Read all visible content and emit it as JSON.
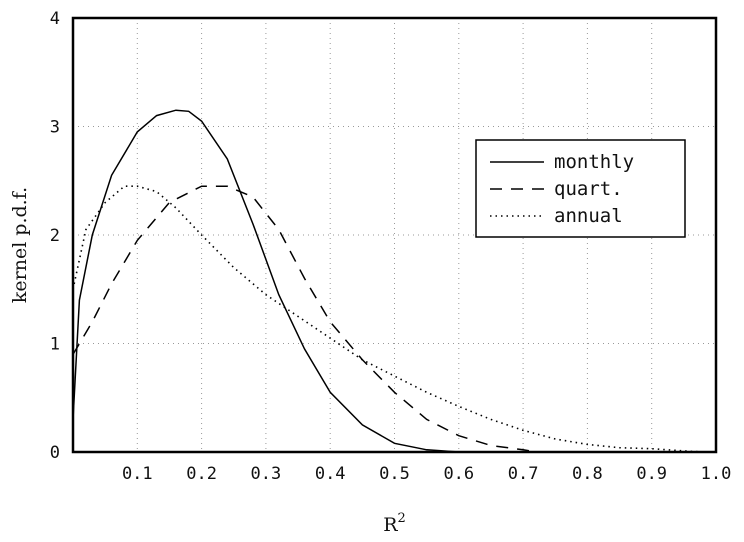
{
  "chart_data": {
    "type": "line",
    "title": "",
    "xlabel": "R",
    "xlabel_sup": "2",
    "ylabel": "kernel p.d.f.",
    "xlim": [
      0.0,
      1.0
    ],
    "ylim": [
      0,
      4
    ],
    "x_ticks": [
      0.1,
      0.2,
      0.3,
      0.4,
      0.5,
      0.6,
      0.7,
      0.8,
      0.9,
      1.0
    ],
    "x_tick_labels": [
      "0.1",
      "0.2",
      "0.3",
      "0.4",
      "0.5",
      "0.6",
      "0.7",
      "0.8",
      "0.9",
      "1.0"
    ],
    "y_ticks": [
      0,
      1,
      2,
      3,
      4
    ],
    "y_tick_labels": [
      "0",
      "1",
      "2",
      "3",
      "4"
    ],
    "grid": "dotted",
    "legend_position": "top-right",
    "series": [
      {
        "name": "monthly",
        "style": "solid",
        "color": "#000000",
        "x": [
          0.0,
          0.01,
          0.03,
          0.06,
          0.1,
          0.13,
          0.16,
          0.18,
          0.2,
          0.24,
          0.28,
          0.32,
          0.36,
          0.4,
          0.45,
          0.5,
          0.55,
          0.6,
          0.65
        ],
        "y": [
          0.3,
          1.4,
          2.0,
          2.55,
          2.95,
          3.1,
          3.15,
          3.14,
          3.05,
          2.7,
          2.1,
          1.45,
          0.95,
          0.55,
          0.25,
          0.08,
          0.02,
          0.0,
          0.0
        ]
      },
      {
        "name": "quart.",
        "style": "dashed",
        "color": "#000000",
        "x": [
          0.0,
          0.03,
          0.06,
          0.1,
          0.15,
          0.2,
          0.24,
          0.28,
          0.32,
          0.36,
          0.4,
          0.45,
          0.5,
          0.55,
          0.6,
          0.65,
          0.7,
          0.72
        ],
        "y": [
          0.9,
          1.2,
          1.55,
          1.95,
          2.3,
          2.45,
          2.45,
          2.35,
          2.05,
          1.6,
          1.2,
          0.85,
          0.55,
          0.3,
          0.15,
          0.06,
          0.02,
          0.0
        ]
      },
      {
        "name": "annual",
        "style": "dotted",
        "color": "#000000",
        "x": [
          0.0,
          0.02,
          0.05,
          0.08,
          0.1,
          0.13,
          0.16,
          0.2,
          0.25,
          0.3,
          0.35,
          0.4,
          0.45,
          0.5,
          0.55,
          0.6,
          0.65,
          0.7,
          0.75,
          0.8,
          0.85,
          0.9,
          0.95,
          0.98
        ],
        "y": [
          1.5,
          2.05,
          2.3,
          2.45,
          2.45,
          2.4,
          2.25,
          2.0,
          1.7,
          1.45,
          1.25,
          1.05,
          0.85,
          0.7,
          0.55,
          0.42,
          0.3,
          0.2,
          0.12,
          0.07,
          0.04,
          0.03,
          0.01,
          0.0
        ]
      }
    ]
  }
}
